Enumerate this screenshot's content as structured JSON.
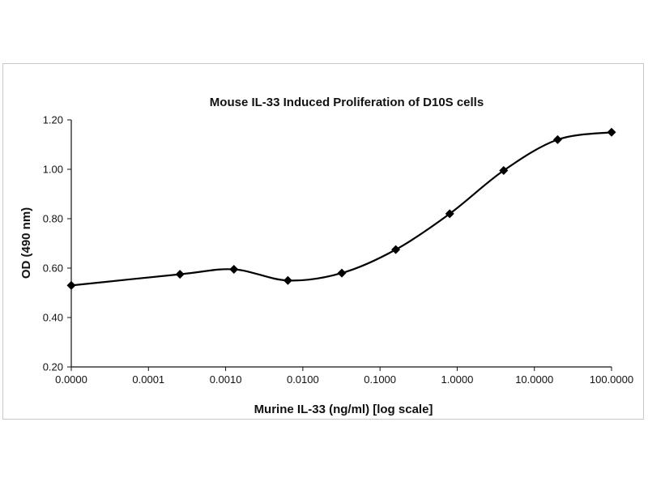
{
  "chart_data": {
    "type": "line",
    "title": "Mouse IL-33 Induced Proliferation of D10S cells",
    "xlabel": "Murine IL-33 (ng/ml) [log scale]",
    "ylabel": "OD (490 nm)",
    "x_tick_labels": [
      "0.0000",
      "0.0001",
      "0.0010",
      "0.0100",
      "0.1000",
      "1.0000",
      "10.0000",
      "100.0000"
    ],
    "y_tick_labels": [
      "0.20",
      "0.40",
      "0.60",
      "0.80",
      "1.00",
      "1.20"
    ],
    "xscale": "log",
    "xlim": [
      1e-05,
      100
    ],
    "ylim": [
      0.2,
      1.2
    ],
    "grid": false,
    "legend": "none",
    "series": [
      {
        "x": [
          1e-05,
          0.000256,
          0.00128,
          0.0064,
          0.032,
          0.16,
          0.8,
          4,
          20,
          100
        ],
        "y": [
          0.53,
          0.575,
          0.595,
          0.55,
          0.58,
          0.675,
          0.82,
          0.995,
          1.12,
          1.15
        ],
        "marker": "diamond",
        "color": "#000000"
      }
    ]
  }
}
